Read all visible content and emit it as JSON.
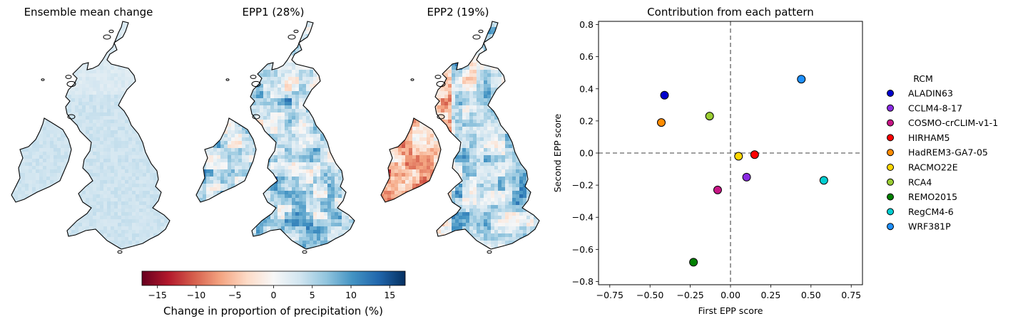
{
  "maps": [
    {
      "title": "Ensemble mean change"
    },
    {
      "title": "EPP1 (28%)"
    },
    {
      "title": "EPP2 (19%)"
    }
  ],
  "colorbar": {
    "label": "Change in proportion of precipitation (%)",
    "range": [
      -17,
      17
    ],
    "ticks": [
      -15,
      -10,
      -5,
      0,
      5,
      10,
      15
    ],
    "tick_labels": [
      "−15",
      "−10",
      "−5",
      "0",
      "5",
      "10",
      "15"
    ],
    "colormap": "RdBu",
    "color_stops": [
      "#67001f",
      "#b2182b",
      "#d6604d",
      "#f4a582",
      "#fddbc7",
      "#f7f7f7",
      "#d1e5f0",
      "#92c5de",
      "#4393c3",
      "#2166ac",
      "#053061"
    ]
  },
  "chart_data": {
    "type": "scatter",
    "title": "Contribution from each pattern",
    "xlabel": "First EPP score",
    "ylabel": "Second EPP score",
    "xlim": [
      -0.82,
      0.82
    ],
    "ylim": [
      -0.82,
      0.82
    ],
    "xticks": [
      -0.75,
      -0.5,
      -0.25,
      0.0,
      0.25,
      0.5,
      0.75
    ],
    "xtick_labels": [
      "−0.75",
      "−0.50",
      "−0.25",
      "0.00",
      "0.25",
      "0.50",
      "0.75"
    ],
    "yticks": [
      -0.8,
      -0.6,
      -0.4,
      -0.2,
      0.0,
      0.2,
      0.4,
      0.6,
      0.8
    ],
    "ytick_labels": [
      "−0.8",
      "−0.6",
      "−0.4",
      "−0.2",
      "0.0",
      "0.2",
      "0.4",
      "0.6",
      "0.8"
    ],
    "grid": false,
    "reference_lines": {
      "x": 0,
      "y": 0,
      "style": "dashed",
      "color": "#808080"
    },
    "legend_title": "RCM",
    "legend_placement": "right",
    "series": [
      {
        "name": "ALADIN63",
        "color": "#0000cd",
        "x": -0.41,
        "y": 0.36
      },
      {
        "name": "CCLM4-8-17",
        "color": "#8a2be2",
        "x": 0.1,
        "y": -0.15
      },
      {
        "name": "COSMO-crCLIM-v1-1",
        "color": "#c71585",
        "x": -0.08,
        "y": -0.23
      },
      {
        "name": "HIRHAM5",
        "color": "#ff0000",
        "x": 0.15,
        "y": -0.01
      },
      {
        "name": "HadREM3-GA7-05",
        "color": "#ff8c00",
        "x": -0.43,
        "y": 0.19
      },
      {
        "name": "RACMO22E",
        "color": "#ffd700",
        "x": 0.05,
        "y": -0.02
      },
      {
        "name": "RCA4",
        "color": "#9acd32",
        "x": -0.13,
        "y": 0.23
      },
      {
        "name": "REMO2015",
        "color": "#008000",
        "x": -0.23,
        "y": -0.68
      },
      {
        "name": "RegCM4-6",
        "color": "#00ced1",
        "x": 0.58,
        "y": -0.17
      },
      {
        "name": "WRF381P",
        "color": "#1e90ff",
        "x": 0.44,
        "y": 0.46
      }
    ]
  }
}
